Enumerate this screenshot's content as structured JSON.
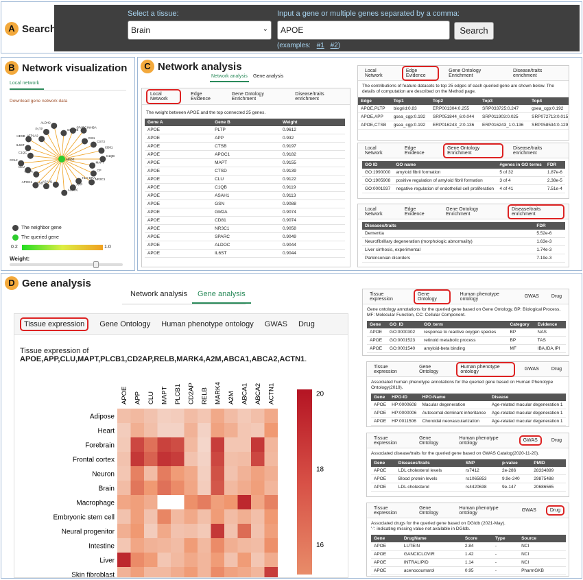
{
  "search": {
    "badge": "A",
    "title": "Search",
    "tissue_label": "Select a tissue:",
    "tissue_value": "Brain",
    "gene_label": "Input a gene or multiple genes separated by a comma:",
    "gene_value": "APOE",
    "button": "Search",
    "examples_prefix": "(examples:",
    "ex1": "#1",
    "ex2": "#2",
    "examples_suffix": ")"
  },
  "netvis": {
    "badge": "B",
    "title": "Network visualization",
    "tab": "Local network",
    "download": "Download gene network data",
    "legend_neighbor": "The neighbor gene",
    "legend_queried": "The queried gene",
    "scale_min": "0.2",
    "scale_max": "1.0",
    "weight_label": "Weight:",
    "weight_fraction": 0.78,
    "center": "APOE",
    "nodes": [
      "C1QB",
      "MAPT",
      "CP",
      "NR3C1",
      "HLA-DRA",
      "APP",
      "ALDOC",
      "ASAH1",
      "CTSB",
      "APOC1",
      "C1QA",
      "CLU",
      "CCL2",
      "C1QC",
      "IL6ST",
      "HEXB",
      "ATP1A2",
      "PLTP",
      "ALDH2",
      "GPNMB",
      "SPARC",
      "INHBA",
      "GSN",
      "CST3",
      "CD81"
    ]
  },
  "netanalysis": {
    "badge": "C",
    "title": "Network analysis",
    "tab_network": "Network analysis",
    "tab_gene": "Gene analysis",
    "local": {
      "tabs": [
        "Local Network",
        "Edge Evidence",
        "Gene Ontology Enrichment",
        "Disease/traits enrichment"
      ],
      "desc": "The weight between APOE and the top connected 25 genes.",
      "headers": [
        "Gene A",
        "Gene B",
        "Weight"
      ],
      "rows": [
        [
          "APOE",
          "PLTP",
          "0.9612"
        ],
        [
          "APOE",
          "APP",
          "0.932"
        ],
        [
          "APOE",
          "CTSB",
          "0.9197"
        ],
        [
          "APOE",
          "APOC1",
          "0.9182"
        ],
        [
          "APOE",
          "MAPT",
          "0.9155"
        ],
        [
          "APOE",
          "CTSD",
          "0.9139"
        ],
        [
          "APOE",
          "CLU",
          "0.9122"
        ],
        [
          "APOE",
          "C1QB",
          "0.9119"
        ],
        [
          "APOE",
          "ASAH1",
          "0.9113"
        ],
        [
          "APOE",
          "GSN",
          "0.9088"
        ],
        [
          "APOE",
          "GM2A",
          "0.9074"
        ],
        [
          "APOE",
          "CD81",
          "0.9074"
        ],
        [
          "APOE",
          "NR3C1",
          "0.9058"
        ],
        [
          "APOE",
          "SPARC",
          "0.9049"
        ],
        [
          "APOE",
          "ALDOC",
          "0.9044"
        ],
        [
          "APOE",
          "IL6ST",
          "0.9044"
        ]
      ]
    },
    "edge": {
      "tabs": [
        "Local Network",
        "Edge Evidence",
        "Gene Ontology Enrichment",
        "Disease/traits enrichment"
      ],
      "desc": "The contributions of feature datasets to top 25 edges of each queried gene are shown below. The details of computation are described on the Method page.",
      "headers": [
        "Edge",
        "Top1",
        "Top2",
        "Top3",
        "Top4",
        "T"
      ],
      "rows": [
        [
          "APOE,PLTP",
          "biogrid:0.83",
          "ERP001304:0.255",
          "SRP033725:0.247",
          "gsea_cgp:0.192",
          "ERP0"
        ],
        [
          "APOE,APP",
          "gsea_cgp:0.192",
          "SRP051844_6:0.044",
          "SRP011903:0.025",
          "SRP072713:0.015",
          "ERP0"
        ],
        [
          "APOE,CTSB",
          "gsea_cgp:0.192",
          "ERP016243_2:0.136",
          "ERP016243_1:0.136",
          "SRP058534:0.129",
          "ERP0"
        ]
      ]
    },
    "go": {
      "tabs": [
        "Local Network",
        "Edge Evidence",
        "Gene Ontology Enrichment",
        "Disease/traits enrichment"
      ],
      "headers": [
        "GO ID",
        "GO name",
        "#genes in GO terms",
        "FDR"
      ],
      "rows": [
        [
          "GO:1990000",
          "amyloid fibril formation",
          "5 of 32",
          "1.87e-6"
        ],
        [
          "GO:1905908",
          "positive regulation of amyloid fibril formation",
          "3 of 4",
          "2.38e-5"
        ],
        [
          "GO:0001937",
          "negative regulation of endothelial cell proliferation",
          "4 of 41",
          "7.51e-4"
        ]
      ]
    },
    "dis": {
      "tabs": [
        "Local Network",
        "Edge Evidence",
        "Gene Ontology Enrichment",
        "Disease/traits enrichment"
      ],
      "headers": [
        "Diseases/traits",
        "FDR"
      ],
      "rows": [
        [
          "Dementia",
          "5.52e-6"
        ],
        [
          "Neurofibrillary degeneration (morphologic abnormality)",
          "1.63e-3"
        ],
        [
          "Liver cirrhosis, experimental",
          "1.74e-3"
        ],
        [
          "Parkinsonian disorders",
          "7.19e-3"
        ]
      ]
    }
  },
  "geneanalysis": {
    "badge": "D",
    "title": "Gene analysis",
    "tab_network": "Network analysis",
    "tab_gene": "Gene analysis",
    "tissue": {
      "tabs": [
        "Tissue expression",
        "Gene Ontology",
        "Human phenotype ontology",
        "GWAS",
        "Drug"
      ],
      "desc_prefix": "Tissue expression of ",
      "desc_genes": "APOE,APP,CLU,MAPT,PLCB1,CD2AP,RELB,MARK4,A2M,ABCA1,ABCA2,ACTN1",
      "desc_suffix": "."
    },
    "gonto": {
      "tabs": [
        "Tissue expression",
        "Gene Ontology",
        "Human phenotype ontology",
        "GWAS",
        "Drug"
      ],
      "desc": "Gene ontology annotations for the queried gene based on Gene Ontology. BP: Biological Process, MF: Molecular Function, CC: Cellular Component.",
      "headers": [
        "Gene",
        "GO_ID",
        "GO_term",
        "Category",
        "Evidence"
      ],
      "rows": [
        [
          "APOE",
          "GO:0000302",
          "response to reactive oxygen species",
          "BP",
          "NAS"
        ],
        [
          "APOE",
          "GO:0001523",
          "retinoid metabolic process",
          "BP",
          "TAS"
        ],
        [
          "APOE",
          "GO:0001540",
          "amyloid-beta binding",
          "MF",
          "IBA,IDA,IPI"
        ]
      ]
    },
    "hpo": {
      "tabs": [
        "Tissue expression",
        "Gene Ontology",
        "Human phenotype ontology",
        "GWAS",
        "Drug"
      ],
      "desc": "Associated human phenotype annotations for the queried gene based on Human Phenotype Ontology(2019).",
      "headers": [
        "Gene",
        "HPO-ID",
        "HPO-Name",
        "Disease"
      ],
      "rows": [
        [
          "APOE",
          "HP:0000608",
          "Macular degeneration",
          "Age-related macular degeneration 1"
        ],
        [
          "APOE",
          "HP:0000006",
          "Autosomal dominant inheritance",
          "Age-related macular degeneration 1"
        ],
        [
          "APOE",
          "HP:0011506",
          "Choroidal neovascularization",
          "Age-related macular degeneration 1"
        ]
      ]
    },
    "gwas": {
      "tabs": [
        "Tissue expression",
        "Gene Ontology",
        "Human phenotype ontology",
        "GWAS",
        "Drug"
      ],
      "desc": "Associated disease/traits for the queried gene based on GWAS Catalog(2020-11-20).",
      "headers": [
        "Gene",
        "Diseases/traits",
        "SNP",
        "p-value",
        "PMID"
      ],
      "rows": [
        [
          "APOE",
          "LDL cholesterol levels",
          "rs7412",
          "2e-286",
          "28334899"
        ],
        [
          "APOE",
          "Blood protein levels",
          "rs1065853",
          "9.9e-240",
          "29875488"
        ],
        [
          "APOE",
          "LDL cholesterol",
          "rs4420638",
          "9e-147",
          "20686565"
        ]
      ]
    },
    "drug": {
      "tabs": [
        "Tissue expression",
        "Gene Ontology",
        "Human phenotype ontology",
        "GWAS",
        "Drug"
      ],
      "desc1": "Associated drugs for the queried gene based on DGIdb (2021-May).",
      "desc2": "'-': indicating missing value not available in DGIdb.",
      "headers": [
        "Gene",
        "DrugName",
        "Score",
        "Type",
        "Source"
      ],
      "rows": [
        [
          "APOE",
          "LUTEIN",
          "2.84",
          "-",
          "NCI"
        ],
        [
          "APOE",
          "GANCICLOVIR",
          "1.42",
          "-",
          "NCI"
        ],
        [
          "APOE",
          "INTRALIPID",
          "1.14",
          "-",
          "NCI"
        ],
        [
          "APOE",
          "acenocoumarol",
          "0.95",
          "-",
          "PharmGKB"
        ]
      ]
    }
  },
  "chart_data": {
    "type": "heatmap",
    "columns": [
      "APOE",
      "APP",
      "CLU",
      "MAPT",
      "PLCB1",
      "CD2AP",
      "RELB",
      "MARK4",
      "A2M",
      "ABCA1",
      "ABCA2",
      "ACTN1"
    ],
    "rows": [
      "Adipose",
      "Heart",
      "Forebrain",
      "Frontal cortex",
      "Neuron",
      "Brain",
      "Macrophage",
      "Embryonic stem cell",
      "Neural progenitor",
      "Intestine",
      "Liver",
      "Skin fibroblast"
    ],
    "colorbar_ticks": [
      "20",
      "18",
      "16"
    ],
    "range": [
      15,
      20
    ],
    "values": [
      [
        16.2,
        16.4,
        16.1,
        15.7,
        15.8,
        16.3,
        16.0,
        16.9,
        16.3,
        15.9,
        16.2,
        16.9
      ],
      [
        15.8,
        16.7,
        16.2,
        15.6,
        15.6,
        16.6,
        15.6,
        17.1,
        16.7,
        16.0,
        15.9,
        17.4
      ],
      [
        15.9,
        19.0,
        18.2,
        19.1,
        18.9,
        16.4,
        15.5,
        19.2,
        16.0,
        16.0,
        19.3,
        16.5
      ],
      [
        16.1,
        19.3,
        18.5,
        19.4,
        19.2,
        16.1,
        15.6,
        19.0,
        16.2,
        16.3,
        19.0,
        16.4
      ],
      [
        16.0,
        17.9,
        16.3,
        18.0,
        17.3,
        16.9,
        15.7,
        18.8,
        16.1,
        16.6,
        17.1,
        16.7
      ],
      [
        16.3,
        18.1,
        17.4,
        18.2,
        17.7,
        17.0,
        15.8,
        18.7,
        16.4,
        16.8,
        17.2,
        16.5
      ],
      [
        17.0,
        17.2,
        16.8,
        15.0,
        15.0,
        17.6,
        18.0,
        17.2,
        17.5,
        19.6,
        17.0,
        17.9
      ],
      [
        16.1,
        17.2,
        16.1,
        17.8,
        16.4,
        16.9,
        16.2,
        17.3,
        16.3,
        16.7,
        16.2,
        17.4
      ],
      [
        16.7,
        17.4,
        15.8,
        16.9,
        16.1,
        16.2,
        15.9,
        19.3,
        16.1,
        18.3,
        16.1,
        17.2
      ],
      [
        16.0,
        17.0,
        16.6,
        16.5,
        16.3,
        17.3,
        16.4,
        17.7,
        16.7,
        16.4,
        16.3,
        17.6
      ],
      [
        19.6,
        17.7,
        17.3,
        16.0,
        16.4,
        16.9,
        16.5,
        17.3,
        16.1,
        17.3,
        16.0,
        16.8
      ],
      [
        16.6,
        17.2,
        16.4,
        16.4,
        16.8,
        17.3,
        16.5,
        17.7,
        17.1,
        16.9,
        16.5,
        19.2
      ]
    ]
  }
}
